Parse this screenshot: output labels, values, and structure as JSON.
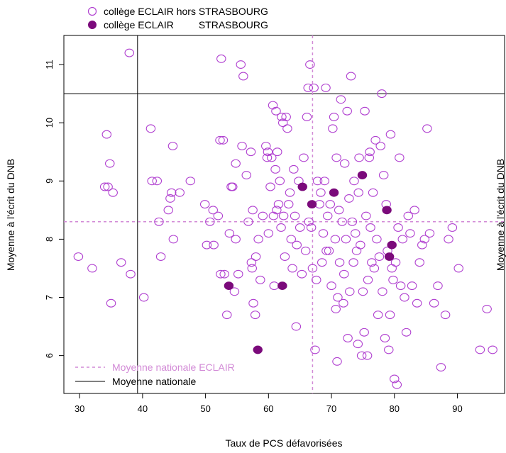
{
  "chart_data": {
    "type": "scatter",
    "xlabel": "Taux de PCS défavorisées",
    "ylabel": "Moyenne à l'écrit du DNB",
    "ylabel_right": "Moyenne à l'écrit du DNB",
    "xlim": [
      27.5,
      97.5
    ],
    "ylim": [
      5.35,
      11.5
    ],
    "x_ticks": [
      30,
      40,
      50,
      60,
      70,
      80,
      90
    ],
    "y_ticks": [
      6,
      7,
      8,
      9,
      10,
      11
    ],
    "grid": false,
    "legend_top": {
      "placement": "top-left",
      "entries": [
        {
          "label": "collège ECLAIR hors STRASBOURG",
          "marker": "open-circle",
          "color": "#b03fd0"
        },
        {
          "label": "collège ECLAIR         STRASBOURG",
          "marker": "filled-circle",
          "color": "#7b0a7b"
        }
      ]
    },
    "legend_bottom": {
      "placement": "bottom-left",
      "entries": [
        {
          "label": "Moyenne nationale ECLAIR",
          "style": "dashed",
          "color": "#d28ad6"
        },
        {
          "label": "Moyenne nationale",
          "style": "solid",
          "color": "#000000"
        }
      ]
    },
    "reference_lines": {
      "national": {
        "x": 39.2,
        "y": 10.5,
        "color": "#000000"
      },
      "eclair": {
        "x": 67.0,
        "y": 8.3,
        "color": "#d28ad6"
      }
    },
    "series": [
      {
        "name": "collège ECLAIR hors STRASBOURG",
        "marker": "open-circle",
        "color": "#b03fd0",
        "points": [
          [
            29.8,
            7.7
          ],
          [
            32,
            7.5
          ],
          [
            34,
            8.9
          ],
          [
            34.3,
            9.8
          ],
          [
            34.5,
            8.9
          ],
          [
            34.8,
            9.3
          ],
          [
            35,
            6.9
          ],
          [
            35.3,
            8.8
          ],
          [
            36.6,
            7.6
          ],
          [
            37.9,
            11.2
          ],
          [
            38.1,
            7.4
          ],
          [
            40.2,
            7.0
          ],
          [
            41.3,
            9.9
          ],
          [
            41.5,
            9.0
          ],
          [
            42.3,
            9.0
          ],
          [
            42.6,
            8.3
          ],
          [
            42.9,
            7.7
          ],
          [
            44.1,
            8.5
          ],
          [
            44.4,
            8.7
          ],
          [
            44.6,
            8.8
          ],
          [
            44.8,
            9.6
          ],
          [
            44.9,
            8.0
          ],
          [
            45.9,
            8.8
          ],
          [
            47.6,
            9.0
          ],
          [
            49.9,
            8.6
          ],
          [
            50.2,
            7.9
          ],
          [
            50.7,
            8.3
          ],
          [
            51.2,
            8.5
          ],
          [
            51.3,
            7.9
          ],
          [
            52,
            8.4
          ],
          [
            52.3,
            9.7
          ],
          [
            52.4,
            7.4
          ],
          [
            52.5,
            11.1
          ],
          [
            52.8,
            9.7
          ],
          [
            53,
            7.4
          ],
          [
            53.4,
            6.7
          ],
          [
            53.8,
            8.1
          ],
          [
            54.1,
            8.9
          ],
          [
            54.3,
            8.9
          ],
          [
            54.6,
            7.1
          ],
          [
            54.8,
            8.0
          ],
          [
            54.8,
            9.3
          ],
          [
            55.2,
            7.4
          ],
          [
            55.6,
            11.0
          ],
          [
            55.8,
            9.6
          ],
          [
            56,
            10.8
          ],
          [
            56.5,
            9.1
          ],
          [
            56.8,
            8.3
          ],
          [
            57.2,
            9.5
          ],
          [
            57.3,
            7.6
          ],
          [
            57.4,
            7.5
          ],
          [
            57.5,
            8.5
          ],
          [
            57.6,
            6.9
          ],
          [
            57.9,
            6.7
          ],
          [
            58,
            7.7
          ],
          [
            58.4,
            8.0
          ],
          [
            58.7,
            7.3
          ],
          [
            59.1,
            8.4
          ],
          [
            59.6,
            9.6
          ],
          [
            59.8,
            9.4
          ],
          [
            59.9,
            9.5
          ],
          [
            60,
            8.1
          ],
          [
            60.3,
            8.9
          ],
          [
            60.5,
            9.4
          ],
          [
            60.7,
            10.3
          ],
          [
            60.8,
            8.4
          ],
          [
            60.9,
            7.2
          ],
          [
            61.1,
            9.2
          ],
          [
            61.2,
            10.2
          ],
          [
            61.3,
            8.5
          ],
          [
            61.4,
            9.5
          ],
          [
            61.6,
            8.6
          ],
          [
            61.8,
            9.0
          ],
          [
            62,
            8.2
          ],
          [
            62.1,
            10.1
          ],
          [
            62.3,
            10.0
          ],
          [
            62.4,
            8.4
          ],
          [
            62.6,
            7.7
          ],
          [
            62.8,
            10.1
          ],
          [
            63,
            9.9
          ],
          [
            63.2,
            8.6
          ],
          [
            63.4,
            8.8
          ],
          [
            63.6,
            8.0
          ],
          [
            63.8,
            7.5
          ],
          [
            64,
            9.2
          ],
          [
            64.2,
            8.4
          ],
          [
            64.4,
            6.5
          ],
          [
            64.5,
            7.9
          ],
          [
            64.8,
            9.0
          ],
          [
            65,
            8.2
          ],
          [
            65.3,
            7.4
          ],
          [
            65.6,
            9.4
          ],
          [
            65.9,
            7.8
          ],
          [
            66.1,
            10.1
          ],
          [
            66.3,
            10.6
          ],
          [
            66.4,
            8.3
          ],
          [
            66.6,
            11.0
          ],
          [
            66.8,
            8.2
          ],
          [
            67,
            7.5
          ],
          [
            67.2,
            10.6
          ],
          [
            67.4,
            6.1
          ],
          [
            67.6,
            7.3
          ],
          [
            67.8,
            9.0
          ],
          [
            68.1,
            8.6
          ],
          [
            68.3,
            8.8
          ],
          [
            68.5,
            7.6
          ],
          [
            68.7,
            8.1
          ],
          [
            68.9,
            9.0
          ],
          [
            69.1,
            10.6
          ],
          [
            69.2,
            7.8
          ],
          [
            69.4,
            8.4
          ],
          [
            69.6,
            7.8
          ],
          [
            69.8,
            8.6
          ],
          [
            70,
            7.2
          ],
          [
            70.2,
            9.9
          ],
          [
            70.4,
            10.1
          ],
          [
            70.6,
            8.0
          ],
          [
            70.7,
            6.8
          ],
          [
            70.8,
            9.4
          ],
          [
            70.9,
            5.9
          ],
          [
            71,
            7.0
          ],
          [
            71.2,
            8.5
          ],
          [
            71.3,
            7.6
          ],
          [
            71.5,
            10.4
          ],
          [
            71.7,
            8.3
          ],
          [
            71.9,
            6.9
          ],
          [
            72,
            7.4
          ],
          [
            72.1,
            9.3
          ],
          [
            72.3,
            8.0
          ],
          [
            72.5,
            10.2
          ],
          [
            72.6,
            6.3
          ],
          [
            72.8,
            8.7
          ],
          [
            72.9,
            7.1
          ],
          [
            73.1,
            10.8
          ],
          [
            73.3,
            8.3
          ],
          [
            73.5,
            7.6
          ],
          [
            73.6,
            9.0
          ],
          [
            73.8,
            8.1
          ],
          [
            74,
            7.8
          ],
          [
            74.2,
            6.2
          ],
          [
            74.3,
            8.8
          ],
          [
            74.4,
            9.4
          ],
          [
            74.6,
            7.9
          ],
          [
            74.8,
            6.0
          ],
          [
            75,
            7.1
          ],
          [
            75.2,
            6.4
          ],
          [
            75.3,
            10.2
          ],
          [
            75.5,
            8.4
          ],
          [
            75.7,
            6.0
          ],
          [
            75.8,
            7.3
          ],
          [
            76,
            9.4
          ],
          [
            76.1,
            9.5
          ],
          [
            76.2,
            8.2
          ],
          [
            76.4,
            7.6
          ],
          [
            76.6,
            8.8
          ],
          [
            76.8,
            7.5
          ],
          [
            77,
            9.7
          ],
          [
            77.2,
            8.0
          ],
          [
            77.4,
            6.7
          ],
          [
            77.6,
            7.7
          ],
          [
            77.8,
            9.6
          ],
          [
            78,
            10.5
          ],
          [
            78.1,
            7.1
          ],
          [
            78.3,
            9.1
          ],
          [
            78.5,
            6.3
          ],
          [
            78.7,
            8.6
          ],
          [
            78.9,
            7.8
          ],
          [
            79.1,
            6.1
          ],
          [
            79.3,
            6.7
          ],
          [
            79.4,
            9.8
          ],
          [
            79.6,
            7.5
          ],
          [
            79.8,
            7.3
          ],
          [
            80,
            5.6
          ],
          [
            80.2,
            7.6
          ],
          [
            80.4,
            5.5
          ],
          [
            80.6,
            8.2
          ],
          [
            80.8,
            9.4
          ],
          [
            81,
            7.2
          ],
          [
            81.3,
            8.0
          ],
          [
            81.6,
            7.0
          ],
          [
            81.9,
            6.4
          ],
          [
            82.2,
            8.4
          ],
          [
            82.5,
            8.1
          ],
          [
            82.8,
            7.2
          ],
          [
            83.2,
            8.5
          ],
          [
            83.6,
            6.9
          ],
          [
            84,
            7.6
          ],
          [
            84.4,
            7.9
          ],
          [
            84.8,
            8.0
          ],
          [
            85.2,
            9.9
          ],
          [
            85.6,
            8.1
          ],
          [
            86.3,
            6.9
          ],
          [
            86.9,
            7.2
          ],
          [
            87.4,
            5.8
          ],
          [
            88.1,
            6.7
          ],
          [
            88.6,
            8.0
          ],
          [
            89.2,
            8.2
          ],
          [
            90.2,
            7.5
          ],
          [
            93.6,
            6.1
          ],
          [
            94.7,
            6.8
          ],
          [
            95.6,
            6.1
          ]
        ]
      },
      {
        "name": "collège ECLAIR         STRASBOURG",
        "marker": "filled-circle",
        "color": "#7b0a7b",
        "points": [
          [
            53.7,
            7.2
          ],
          [
            58.3,
            6.1
          ],
          [
            62.2,
            7.2
          ],
          [
            65.4,
            8.9
          ],
          [
            66.9,
            8.6
          ],
          [
            70.4,
            8.8
          ],
          [
            74.9,
            9.1
          ],
          [
            78.8,
            8.5
          ],
          [
            79.2,
            7.7
          ],
          [
            79.6,
            7.9
          ]
        ]
      }
    ]
  }
}
